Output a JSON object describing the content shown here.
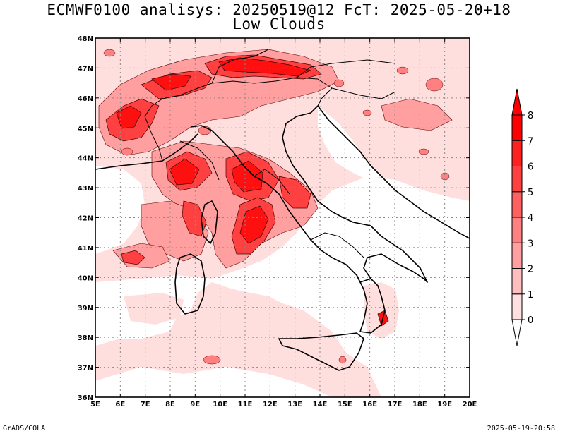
{
  "title": {
    "line1": "ECMWF0100 analisys: 20250519@12 FcT: 2025-05-20+18",
    "line2": "Low Clouds"
  },
  "map": {
    "lon_ticks": [
      "5E",
      "6E",
      "7E",
      "8E",
      "9E",
      "10E",
      "11E",
      "12E",
      "13E",
      "14E",
      "15E",
      "16E",
      "17E",
      "18E",
      "19E",
      "20E"
    ],
    "lat_ticks": [
      "36N",
      "37N",
      "38N",
      "39N",
      "40N",
      "41N",
      "42N",
      "43N",
      "44N",
      "45N",
      "46N",
      "47N",
      "48N"
    ],
    "lon_range": [
      5,
      20
    ],
    "lat_range": [
      36,
      48
    ],
    "grid": "dotted",
    "coastline_color": "#000000",
    "border_color": "#000000"
  },
  "colorbar": {
    "levels": [
      "0",
      "1",
      "2",
      "3",
      "4",
      "5",
      "6",
      "7",
      "8"
    ],
    "colors": [
      "#ffffff",
      "#ffe0e0",
      "#ffbfbf",
      "#ff9f9f",
      "#ff8080",
      "#ff6060",
      "#ff4040",
      "#ff2020",
      "#ff0000"
    ]
  },
  "footer": {
    "left": "GrADS/COLA",
    "right": "2025-05-19-20:58"
  }
}
